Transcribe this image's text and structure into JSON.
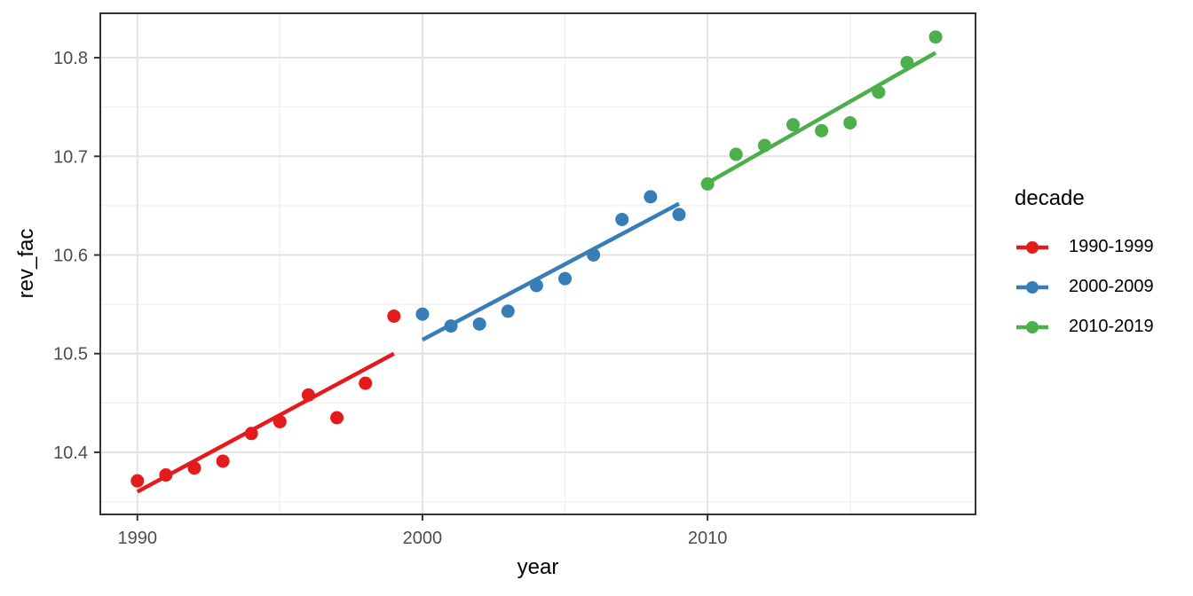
{
  "chart_data": {
    "type": "scatter",
    "title": "",
    "xlabel": "year",
    "ylabel": "rev_fac",
    "legend_title": "decade",
    "legend_position": "right",
    "grid": true,
    "xlim": [
      1988.7,
      2019.4
    ],
    "ylim": [
      10.337,
      10.845
    ],
    "x_ticks": [
      1990,
      2000,
      2010
    ],
    "x_tick_labels": [
      "1990",
      "2000",
      "2010"
    ],
    "x_minor_ticks": [
      1995,
      2005,
      2015
    ],
    "y_ticks": [
      10.4,
      10.5,
      10.6,
      10.7,
      10.8
    ],
    "y_tick_labels": [
      "10.4",
      "10.5",
      "10.6",
      "10.7",
      "10.8"
    ],
    "y_minor_ticks": [
      10.35,
      10.45,
      10.55,
      10.65,
      10.75
    ],
    "series": [
      {
        "name": "1990-1999",
        "color": "#E41A1C",
        "x": [
          1990,
          1991,
          1992,
          1993,
          1994,
          1995,
          1996,
          1997,
          1998,
          1999
        ],
        "y": [
          10.371,
          10.377,
          10.384,
          10.391,
          10.419,
          10.431,
          10.458,
          10.435,
          10.47,
          10.538
        ],
        "trend": {
          "x1": 1990,
          "y1": 10.36,
          "x2": 1999,
          "y2": 10.5
        }
      },
      {
        "name": "2000-2009",
        "color": "#377EB8",
        "x": [
          2000,
          2001,
          2002,
          2003,
          2004,
          2005,
          2006,
          2007,
          2008,
          2009
        ],
        "y": [
          10.54,
          10.528,
          10.53,
          10.543,
          10.569,
          10.576,
          10.6,
          10.636,
          10.659,
          10.641
        ],
        "trend": {
          "x1": 2000,
          "y1": 10.514,
          "x2": 2009,
          "y2": 10.652
        }
      },
      {
        "name": "2010-2019",
        "color": "#4DAF4A",
        "x": [
          2010,
          2011,
          2012,
          2013,
          2014,
          2015,
          2016,
          2017,
          2018
        ],
        "y": [
          10.672,
          10.702,
          10.711,
          10.732,
          10.726,
          10.734,
          10.765,
          10.795,
          10.821
        ],
        "trend": {
          "x1": 2010,
          "y1": 10.673,
          "x2": 2018,
          "y2": 10.805
        }
      }
    ]
  }
}
